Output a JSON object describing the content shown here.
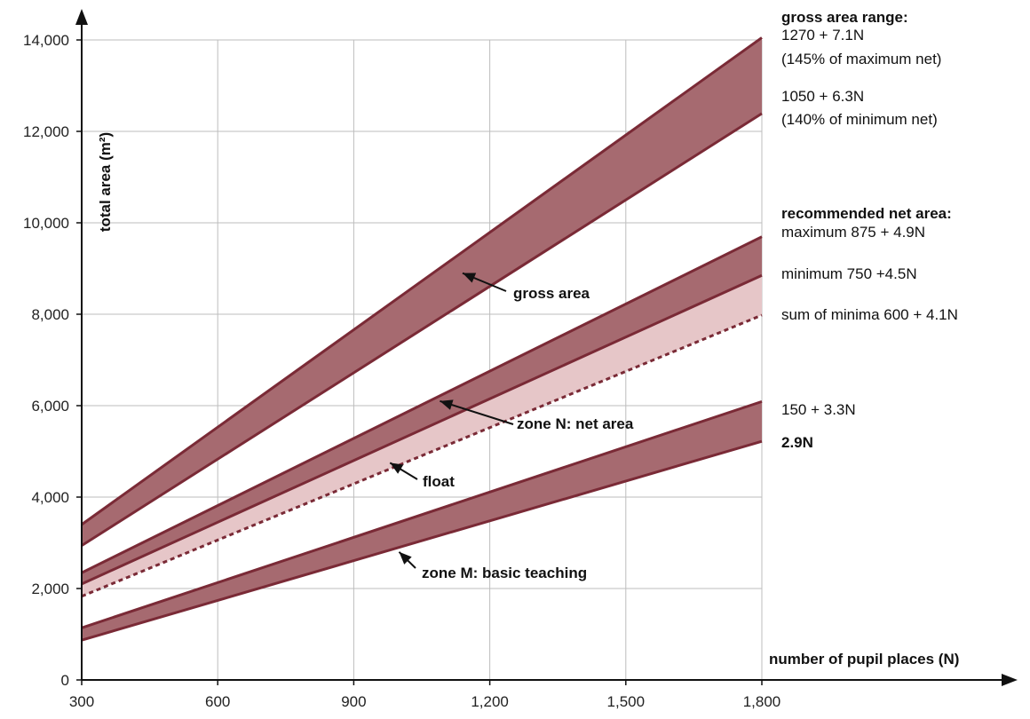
{
  "chart_data": {
    "type": "area",
    "xlabel": "number of pupil places (N)",
    "ylabel": "total area (m²)",
    "xlim": [
      300,
      1800
    ],
    "ylim": [
      0,
      14000
    ],
    "x_ticks": [
      300,
      600,
      900,
      1200,
      1500,
      1800
    ],
    "x_tick_labels": [
      "300",
      "600",
      "900",
      "1,200",
      "1,500",
      "1,800"
    ],
    "y_ticks": [
      0,
      2000,
      4000,
      6000,
      8000,
      10000,
      12000,
      14000
    ],
    "y_tick_labels": [
      "0",
      "2,000",
      "4,000",
      "6,000",
      "8,000",
      "10,000",
      "12,000",
      "14,000"
    ],
    "grid": true,
    "x": [
      300,
      1800
    ],
    "series": [
      {
        "key": "gross_max",
        "values": [
          3400,
          14050
        ]
      },
      {
        "key": "gross_min",
        "values": [
          2940,
          12390
        ]
      },
      {
        "key": "net_max",
        "values": [
          2345,
          9695
        ]
      },
      {
        "key": "net_min",
        "values": [
          2100,
          8850
        ]
      },
      {
        "key": "sum_minima",
        "values": [
          1830,
          7980
        ],
        "dashed": true
      },
      {
        "key": "zone_m_max",
        "values": [
          1140,
          6090
        ]
      },
      {
        "key": "zone_m_min",
        "values": [
          870,
          5220
        ]
      }
    ],
    "bands": [
      {
        "name": "gross area",
        "upper": "gross_max",
        "lower": "gross_min",
        "color": "#a66a70"
      },
      {
        "name": "zone N: net area",
        "upper": "net_max",
        "lower": "net_min",
        "color": "#a66a70"
      },
      {
        "name": "float",
        "upper": "net_min",
        "lower": "sum_minima",
        "color": "#e6c6c8"
      },
      {
        "name": "zone M: basic teaching",
        "upper": "zone_m_max",
        "lower": "zone_m_min",
        "color": "#a66a70"
      }
    ],
    "line_color": "#7a2a36",
    "annotations": [
      {
        "text": "gross area",
        "arrow_to": [
          1140,
          8900
        ]
      },
      {
        "text": "zone N: net area",
        "arrow_to": [
          1090,
          6100
        ]
      },
      {
        "text": "float",
        "arrow_to": [
          980,
          4750
        ]
      },
      {
        "text": "zone M: basic teaching",
        "arrow_to": [
          1000,
          2800
        ]
      }
    ],
    "right_labels": {
      "gross_heading": "gross area range:",
      "gross_max_formula": "1270 + 7.1N",
      "gross_max_note": "(145% of maximum net)",
      "gross_min_formula": "1050 + 6.3N",
      "gross_min_note": "(140% of minimum net)",
      "net_heading": "recommended net area:",
      "net_max": "maximum 875 + 4.9N",
      "net_min": "minimum 750 +4.5N",
      "sum_minima": "sum of minima 600 + 4.1N",
      "zone_m_max": "150 + 3.3N",
      "zone_m_min": "2.9N"
    }
  }
}
